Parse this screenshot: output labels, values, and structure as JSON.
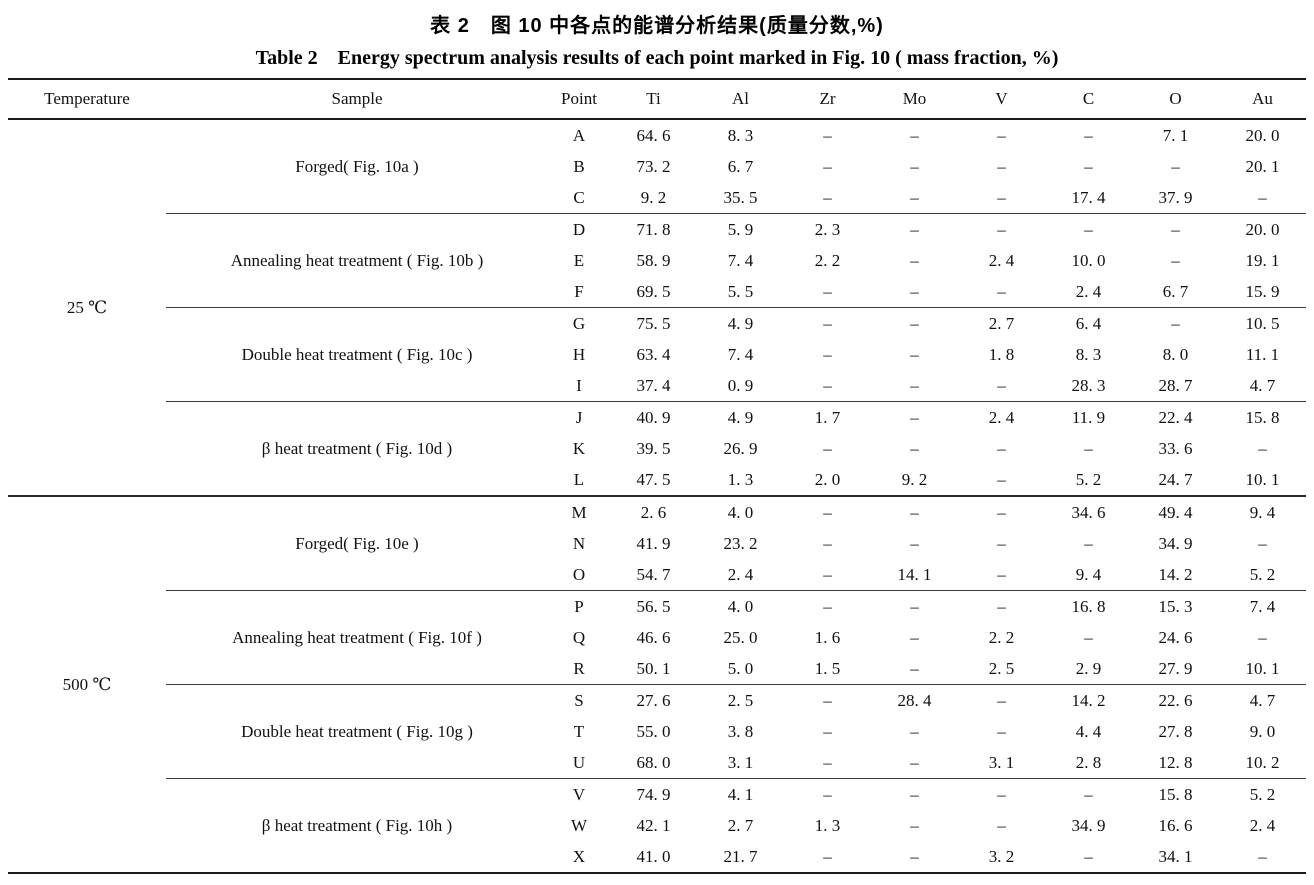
{
  "titles": {
    "zh": "表 2　图 10 中各点的能谱分析结果(质量分数,%)",
    "en": "Table 2　Energy spectrum analysis results of each point marked in Fig. 10 ( mass fraction, %)"
  },
  "table": {
    "columns": [
      "Temperature",
      "Sample",
      "Point",
      "Ti",
      "Al",
      "Zr",
      "Mo",
      "V",
      "C",
      "O",
      "Au"
    ],
    "missing_value_symbol": "–",
    "sections": [
      {
        "temperature": "25 ℃",
        "groups": [
          {
            "sample": "Forged( Fig. 10a )",
            "rows": [
              {
                "point": "A",
                "values": [
                  "64. 6",
                  "8. 3",
                  "–",
                  "–",
                  "–",
                  "–",
                  "7. 1",
                  "20. 0"
                ]
              },
              {
                "point": "B",
                "values": [
                  "73. 2",
                  "6. 7",
                  "–",
                  "–",
                  "–",
                  "–",
                  "–",
                  "20. 1"
                ]
              },
              {
                "point": "C",
                "values": [
                  "9. 2",
                  "35. 5",
                  "–",
                  "–",
                  "–",
                  "17. 4",
                  "37. 9",
                  "–"
                ]
              }
            ]
          },
          {
            "sample": "Annealing heat treatment ( Fig. 10b )",
            "rows": [
              {
                "point": "D",
                "values": [
                  "71. 8",
                  "5. 9",
                  "2. 3",
                  "–",
                  "–",
                  "–",
                  "–",
                  "20. 0"
                ]
              },
              {
                "point": "E",
                "values": [
                  "58. 9",
                  "7. 4",
                  "2. 2",
                  "–",
                  "2. 4",
                  "10. 0",
                  "–",
                  "19. 1"
                ]
              },
              {
                "point": "F",
                "values": [
                  "69. 5",
                  "5. 5",
                  "–",
                  "–",
                  "–",
                  "2. 4",
                  "6. 7",
                  "15. 9"
                ]
              }
            ]
          },
          {
            "sample": "Double heat treatment ( Fig. 10c )",
            "rows": [
              {
                "point": "G",
                "values": [
                  "75. 5",
                  "4. 9",
                  "–",
                  "–",
                  "2. 7",
                  "6. 4",
                  "–",
                  "10. 5"
                ]
              },
              {
                "point": "H",
                "values": [
                  "63. 4",
                  "7. 4",
                  "–",
                  "–",
                  "1. 8",
                  "8. 3",
                  "8. 0",
                  "11. 1"
                ]
              },
              {
                "point": "I",
                "values": [
                  "37. 4",
                  "0. 9",
                  "–",
                  "–",
                  "–",
                  "28. 3",
                  "28. 7",
                  "4. 7"
                ]
              }
            ]
          },
          {
            "sample": "β heat treatment ( Fig. 10d )",
            "rows": [
              {
                "point": "J",
                "values": [
                  "40. 9",
                  "4. 9",
                  "1. 7",
                  "–",
                  "2. 4",
                  "11. 9",
                  "22. 4",
                  "15. 8"
                ]
              },
              {
                "point": "K",
                "values": [
                  "39. 5",
                  "26. 9",
                  "–",
                  "–",
                  "–",
                  "–",
                  "33. 6",
                  "–"
                ]
              },
              {
                "point": "L",
                "values": [
                  "47. 5",
                  "1. 3",
                  "2. 0",
                  "9. 2",
                  "–",
                  "5. 2",
                  "24. 7",
                  "10. 1"
                ]
              }
            ]
          }
        ]
      },
      {
        "temperature": "500 ℃",
        "groups": [
          {
            "sample": "Forged( Fig. 10e )",
            "rows": [
              {
                "point": "M",
                "values": [
                  "2. 6",
                  "4. 0",
                  "–",
                  "–",
                  "–",
                  "34. 6",
                  "49. 4",
                  "9. 4"
                ]
              },
              {
                "point": "N",
                "values": [
                  "41. 9",
                  "23. 2",
                  "–",
                  "–",
                  "–",
                  "–",
                  "34. 9",
                  "–"
                ]
              },
              {
                "point": "O",
                "values": [
                  "54. 7",
                  "2. 4",
                  "–",
                  "14. 1",
                  "–",
                  "9. 4",
                  "14. 2",
                  "5. 2"
                ]
              }
            ]
          },
          {
            "sample": "Annealing heat treatment ( Fig. 10f )",
            "rows": [
              {
                "point": "P",
                "values": [
                  "56. 5",
                  "4. 0",
                  "–",
                  "–",
                  "–",
                  "16. 8",
                  "15. 3",
                  "7. 4"
                ]
              },
              {
                "point": "Q",
                "values": [
                  "46. 6",
                  "25. 0",
                  "1. 6",
                  "–",
                  "2. 2",
                  "–",
                  "24. 6",
                  "–"
                ]
              },
              {
                "point": "R",
                "values": [
                  "50. 1",
                  "5. 0",
                  "1. 5",
                  "–",
                  "2. 5",
                  "2. 9",
                  "27. 9",
                  "10. 1"
                ]
              }
            ]
          },
          {
            "sample": "Double heat treatment ( Fig. 10g )",
            "rows": [
              {
                "point": "S",
                "values": [
                  "27. 6",
                  "2. 5",
                  "–",
                  "28. 4",
                  "–",
                  "14. 2",
                  "22. 6",
                  "4. 7"
                ]
              },
              {
                "point": "T",
                "values": [
                  "55. 0",
                  "3. 8",
                  "–",
                  "–",
                  "–",
                  "4. 4",
                  "27. 8",
                  "9. 0"
                ]
              },
              {
                "point": "U",
                "values": [
                  "68. 0",
                  "3. 1",
                  "–",
                  "–",
                  "3. 1",
                  "2. 8",
                  "12. 8",
                  "10. 2"
                ]
              }
            ]
          },
          {
            "sample": "β heat treatment ( Fig. 10h )",
            "rows": [
              {
                "point": "V",
                "values": [
                  "74. 9",
                  "4. 1",
                  "–",
                  "–",
                  "–",
                  "–",
                  "15. 8",
                  "5. 2"
                ]
              },
              {
                "point": "W",
                "values": [
                  "42. 1",
                  "2. 7",
                  "1. 3",
                  "–",
                  "–",
                  "34. 9",
                  "16. 6",
                  "2. 4"
                ]
              },
              {
                "point": "X",
                "values": [
                  "41. 0",
                  "21. 7",
                  "–",
                  "–",
                  "3. 2",
                  "–",
                  "34. 1",
                  "–"
                ]
              }
            ]
          }
        ]
      }
    ]
  }
}
